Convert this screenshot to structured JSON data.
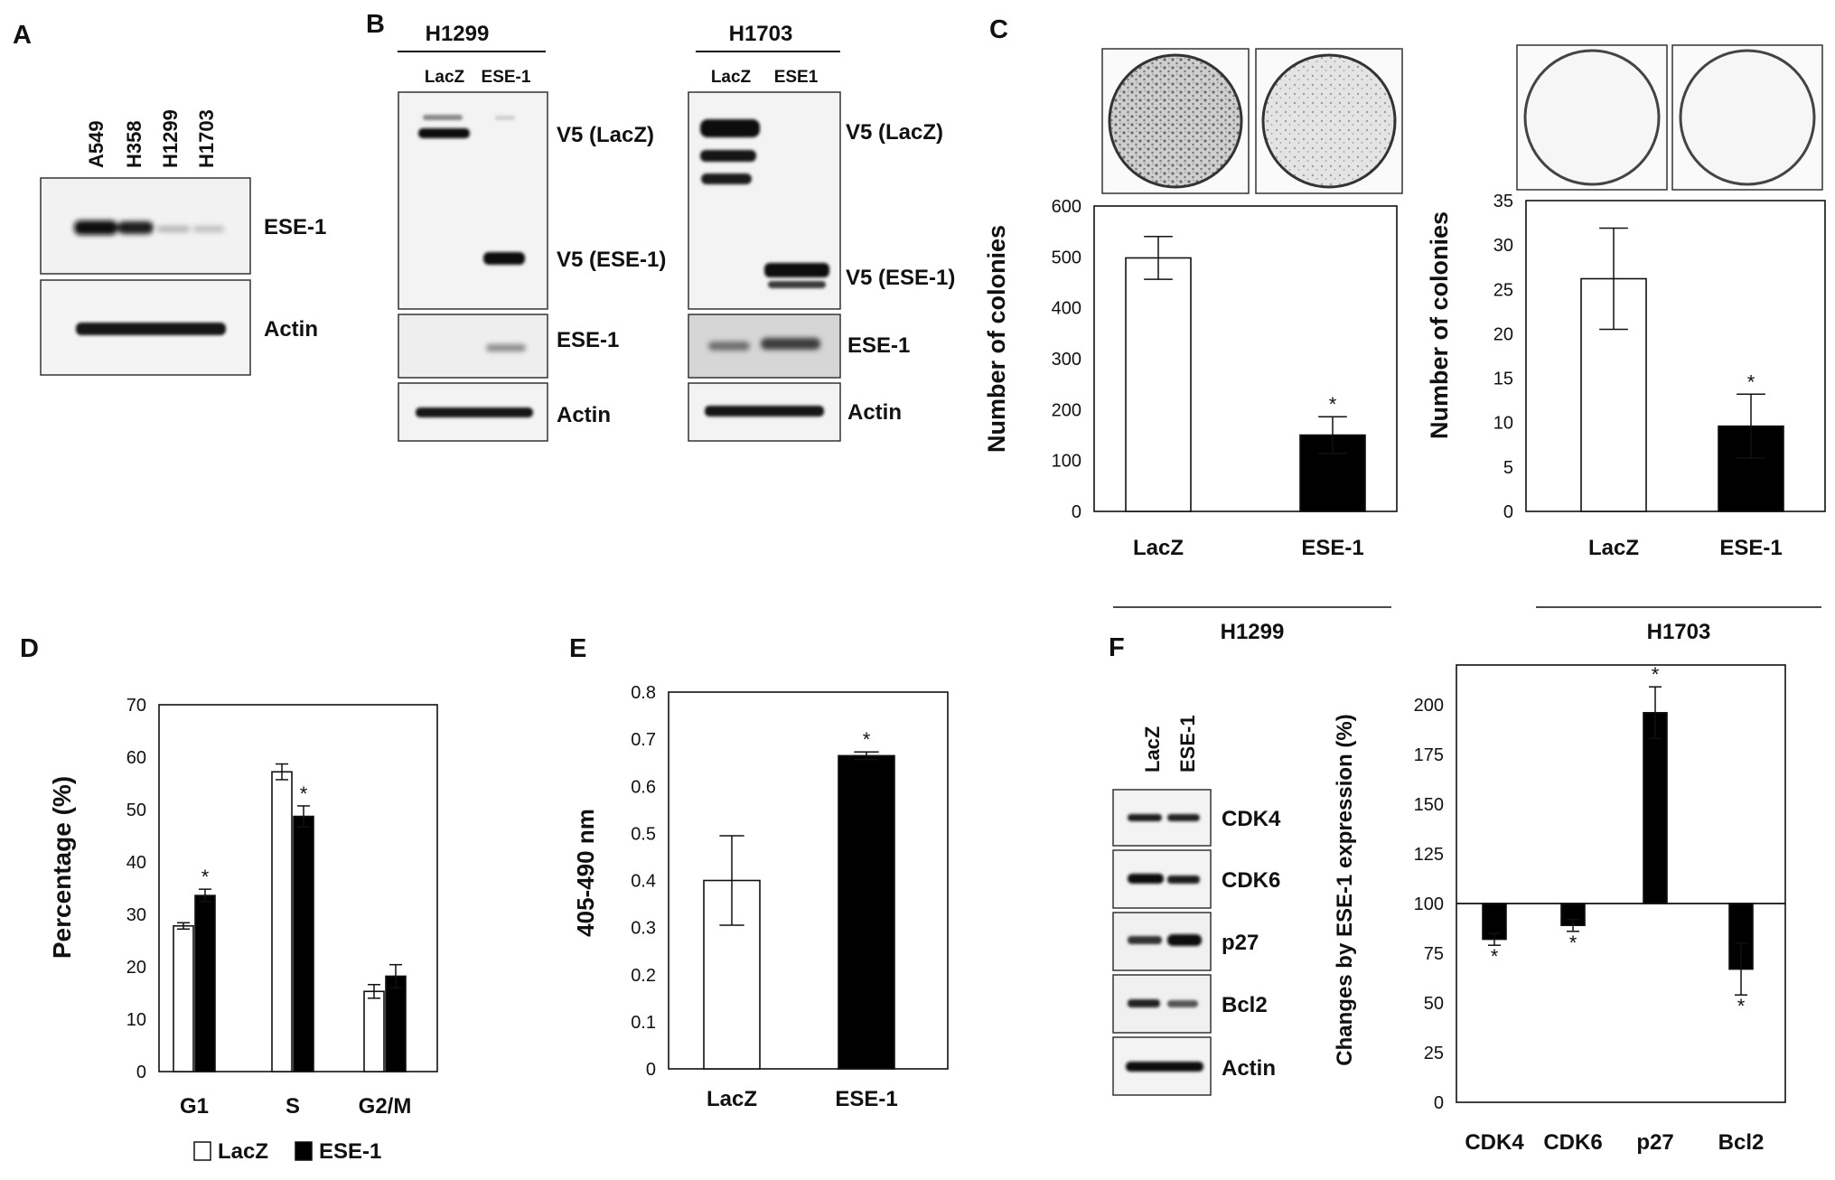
{
  "panel_letters": [
    "A",
    "B",
    "C",
    "D",
    "E",
    "F"
  ],
  "colors": {
    "empty_bar": "#ffffff",
    "filled_bar": "#000000",
    "axis": "#111111",
    "blot_bg": "#f3f3f3"
  },
  "panel_a": {
    "lanes": [
      "A549",
      "H358",
      "H1299",
      "H1703"
    ],
    "blots": [
      "ESE-1",
      "Actin"
    ]
  },
  "panel_b": {
    "cell_lines": [
      {
        "name": "H1299",
        "lanes": [
          "LacZ",
          "ESE-1"
        ],
        "blots": [
          "V5 (LacZ)",
          "V5 (ESE-1)",
          "ESE-1",
          "Actin"
        ]
      },
      {
        "name": "H1703",
        "lanes": [
          "LacZ",
          "ESE1"
        ],
        "blots": [
          "V5 (LacZ)",
          "V5 (ESE-1)",
          "ESE-1",
          "Actin"
        ]
      }
    ]
  },
  "panel_f_blot": {
    "lanes": [
      "LacZ",
      "ESE-1"
    ],
    "blots": [
      "CDK4",
      "CDK6",
      "p27",
      "Bcl2",
      "Actin"
    ]
  },
  "chart_data": [
    {
      "id": "C-H1299",
      "type": "bar",
      "group_label": "H1299",
      "categories": [
        "LacZ",
        "ESE-1"
      ],
      "values": [
        498,
        150
      ],
      "errors": [
        42,
        36
      ],
      "significant": [
        false,
        true
      ],
      "ylabel": "Number of colonies",
      "ylim": [
        0,
        600
      ],
      "yticks": [
        0,
        100,
        200,
        300,
        400,
        500,
        600
      ]
    },
    {
      "id": "C-H1703",
      "type": "bar",
      "group_label": "H1703",
      "categories": [
        "LacZ",
        "ESE-1"
      ],
      "values": [
        26.2,
        9.6
      ],
      "errors": [
        5.7,
        3.6
      ],
      "significant": [
        false,
        true
      ],
      "ylabel": "Number of colonies",
      "ylim": [
        0,
        35
      ],
      "yticks": [
        0,
        5,
        10,
        15,
        20,
        25,
        30,
        35
      ]
    },
    {
      "id": "D",
      "type": "bar",
      "categories": [
        "G1",
        "S",
        "G2/M"
      ],
      "series": [
        {
          "name": "LacZ",
          "values": [
            27.8,
            57.2,
            15.3
          ],
          "errors": [
            0.6,
            1.5,
            1.3
          ],
          "significant": [
            false,
            false,
            false
          ]
        },
        {
          "name": "ESE-1",
          "values": [
            33.6,
            48.7,
            18.2
          ],
          "errors": [
            1.2,
            2.0,
            2.2
          ],
          "significant": [
            true,
            true,
            false
          ]
        }
      ],
      "ylabel": "Percentage (%)",
      "ylim": [
        0,
        70
      ],
      "yticks": [
        0,
        10,
        20,
        30,
        40,
        50,
        60,
        70
      ],
      "legend": "bottom"
    },
    {
      "id": "E",
      "type": "bar",
      "categories": [
        "LacZ",
        "ESE-1"
      ],
      "values": [
        0.4,
        0.665
      ],
      "errors": [
        0.095,
        0.008
      ],
      "significant": [
        false,
        true
      ],
      "ylabel": "405-490 nm",
      "ylim": [
        0,
        0.8
      ],
      "yticks": [
        "0",
        "0.1",
        "0.2",
        "0.3",
        "0.4",
        "0.5",
        "0.6",
        "0.7",
        "0.8"
      ]
    },
    {
      "id": "F",
      "type": "bar",
      "categories": [
        "CDK4",
        "CDK6",
        "p27",
        "Bcl2"
      ],
      "values": [
        82,
        89,
        196,
        67
      ],
      "errors": [
        3,
        3,
        13,
        13
      ],
      "significant": [
        true,
        true,
        true,
        true
      ],
      "baseline": 100,
      "ylabel": "Changes by ESE-1 expression (%)",
      "ylim": [
        0,
        220
      ],
      "yticks": [
        0,
        25,
        50,
        75,
        100,
        125,
        150,
        175,
        200
      ]
    }
  ]
}
